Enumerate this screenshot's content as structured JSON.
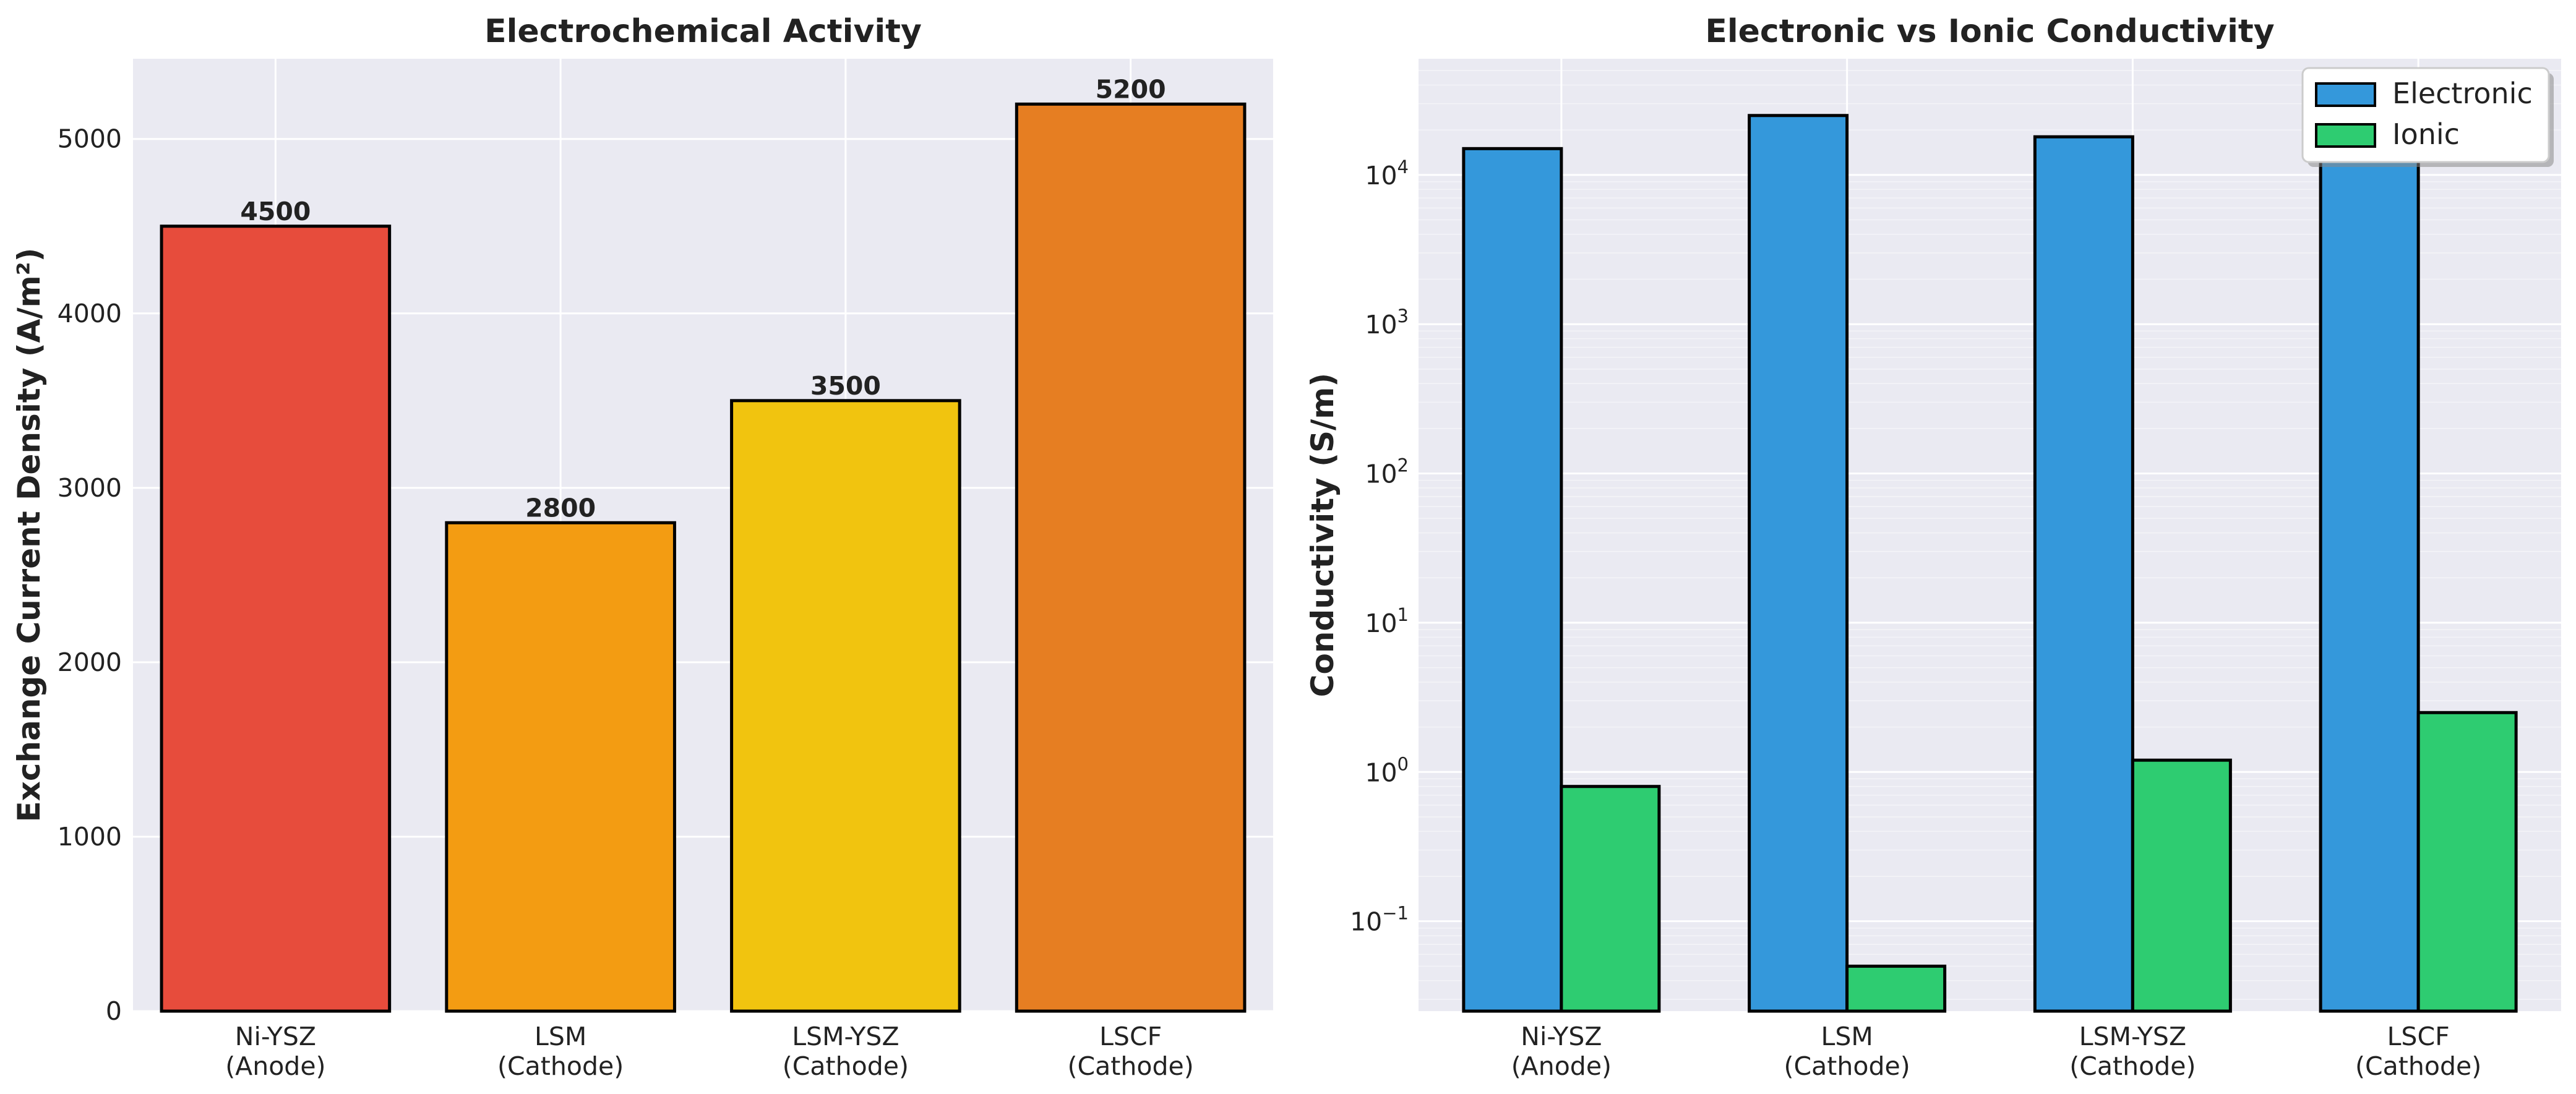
{
  "chart_data": [
    {
      "type": "bar",
      "title": "Electrochemical Activity",
      "xlabel": "",
      "ylabel": "Exchange Current Density (A/m²)",
      "categories": [
        "Ni-YSZ\n(Anode)",
        "LSM\n(Cathode)",
        "LSM-YSZ\n(Cathode)",
        "LSCF\n(Cathode)"
      ],
      "values": [
        4500,
        2800,
        3500,
        5200
      ],
      "value_labels": [
        "4500",
        "2800",
        "3500",
        "5200"
      ],
      "colors": [
        "#e74c3c",
        "#f39c12",
        "#f1c40f",
        "#e67e22"
      ],
      "ylim": [
        0,
        5460
      ],
      "yticks": [
        0,
        1000,
        2000,
        3000,
        4000,
        5000
      ],
      "ytick_labels": [
        "0",
        "1000",
        "2000",
        "3000",
        "4000",
        "5000"
      ],
      "grid": true
    },
    {
      "type": "bar",
      "title": "Electronic vs Ionic Conductivity",
      "xlabel": "",
      "ylabel": "Conductivity (S/m)",
      "yscale": "log",
      "categories": [
        "Ni-YSZ\n(Anode)",
        "LSM\n(Cathode)",
        "LSM-YSZ\n(Cathode)",
        "LSCF\n(Cathode)"
      ],
      "series": [
        {
          "name": "Electronic",
          "color": "#3498db",
          "values": [
            15000,
            25000,
            18000,
            30000
          ]
        },
        {
          "name": "Ionic",
          "color": "#2ecc71",
          "values": [
            0.8,
            0.05,
            1.2,
            2.5
          ]
        }
      ],
      "ylim": [
        0.025,
        60000
      ],
      "yticks": [
        0.1,
        1,
        10,
        100,
        1000,
        10000
      ],
      "ytick_labels": [
        {
          "base": "10",
          "exp": "−1"
        },
        {
          "base": "10",
          "exp": "0"
        },
        {
          "base": "10",
          "exp": "1"
        },
        {
          "base": "10",
          "exp": "2"
        },
        {
          "base": "10",
          "exp": "3"
        },
        {
          "base": "10",
          "exp": "4"
        }
      ],
      "legend": {
        "position": "top-right",
        "entries": [
          "Electronic",
          "Ionic"
        ]
      },
      "grid": true
    }
  ]
}
